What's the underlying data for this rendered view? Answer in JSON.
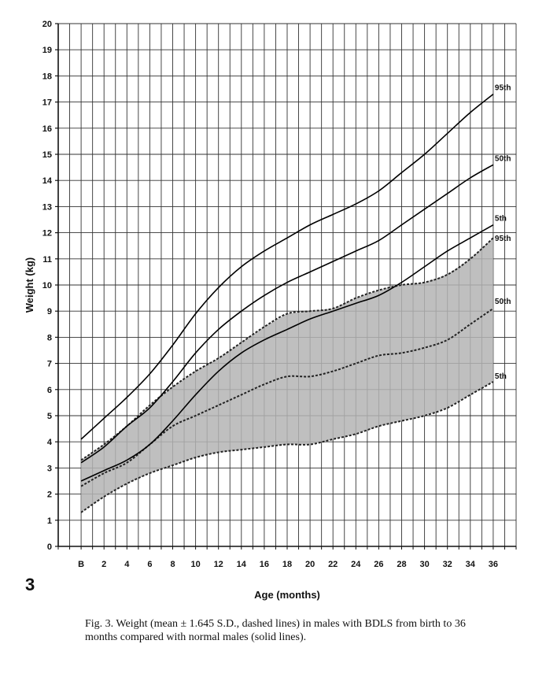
{
  "figure": {
    "number_label": "3",
    "caption": "Fig. 3.   Weight (mean ± 1.645 S.D., dashed lines) in males with BDLS from birth to 36 months compared with normal males (solid lines)."
  },
  "chart_data": {
    "type": "line",
    "xlabel": "Age (months)",
    "ylabel": "Weight (kg)",
    "x_ticks": [
      "B",
      "2",
      "4",
      "6",
      "8",
      "10",
      "12",
      "14",
      "16",
      "18",
      "20",
      "22",
      "24",
      "26",
      "28",
      "30",
      "32",
      "34",
      "36"
    ],
    "x": [
      0,
      2,
      4,
      6,
      8,
      10,
      12,
      14,
      16,
      18,
      20,
      22,
      24,
      26,
      28,
      30,
      32,
      34,
      36
    ],
    "xlim": [
      -2,
      38
    ],
    "ylim": [
      0,
      20
    ],
    "y_ticks": [
      0,
      1,
      2,
      3,
      4,
      5,
      6,
      7,
      8,
      9,
      10,
      11,
      12,
      13,
      14,
      15,
      16,
      17,
      18,
      19,
      20
    ],
    "grid": true,
    "normal_series": [
      {
        "name": "95th",
        "style": "solid",
        "values": [
          4.1,
          4.9,
          5.7,
          6.6,
          7.7,
          8.9,
          9.9,
          10.7,
          11.3,
          11.8,
          12.3,
          12.7,
          13.1,
          13.6,
          14.3,
          15.0,
          15.8,
          16.6,
          17.3
        ]
      },
      {
        "name": "50th",
        "style": "solid",
        "values": [
          3.2,
          3.8,
          4.6,
          5.3,
          6.3,
          7.4,
          8.3,
          9.0,
          9.6,
          10.1,
          10.5,
          10.9,
          11.3,
          11.7,
          12.3,
          12.9,
          13.5,
          14.1,
          14.6
        ]
      },
      {
        "name": "5th",
        "style": "solid",
        "values": [
          2.5,
          2.9,
          3.3,
          3.9,
          4.8,
          5.8,
          6.7,
          7.4,
          7.9,
          8.3,
          8.7,
          9.0,
          9.3,
          9.6,
          10.1,
          10.7,
          11.3,
          11.8,
          12.3
        ]
      }
    ],
    "bdls_series": [
      {
        "name": "95th",
        "style": "dashed",
        "values": [
          3.3,
          3.9,
          4.6,
          5.4,
          6.1,
          6.7,
          7.2,
          7.8,
          8.4,
          8.9,
          9.0,
          9.1,
          9.5,
          9.8,
          10.0,
          10.1,
          10.4,
          11.0,
          11.8
        ]
      },
      {
        "name": "50th",
        "style": "dashed",
        "values": [
          2.3,
          2.8,
          3.2,
          3.9,
          4.6,
          5.0,
          5.4,
          5.8,
          6.2,
          6.5,
          6.5,
          6.7,
          7.0,
          7.3,
          7.4,
          7.6,
          7.9,
          8.5,
          9.1
        ]
      },
      {
        "name": "5th",
        "style": "dashed",
        "values": [
          1.3,
          1.9,
          2.4,
          2.8,
          3.1,
          3.4,
          3.6,
          3.7,
          3.8,
          3.9,
          3.9,
          4.1,
          4.3,
          4.6,
          4.8,
          5.0,
          5.3,
          5.8,
          6.3
        ]
      }
    ],
    "colors": {
      "axis": "#111111",
      "grid": "#333333",
      "band_fill": "#b4b4b4",
      "solid_line": "#000000",
      "dashed_line": "#222222"
    }
  }
}
